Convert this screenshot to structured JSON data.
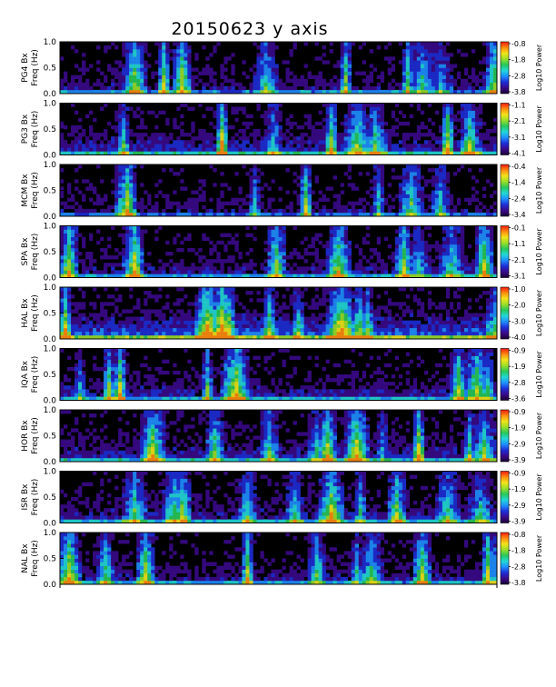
{
  "title": "20150623 y axis",
  "colors": {
    "background": "#000000",
    "colormap": [
      "#1a0033",
      "#3a0a8a",
      "#1e2dd6",
      "#1f8fff",
      "#22d8d8",
      "#27c85a",
      "#9adf2a",
      "#f2e51a",
      "#ff8c10",
      "#ff1a10"
    ]
  },
  "chart_data": [
    {
      "type": "heatmap",
      "station": "PG4",
      "component": "Bx",
      "ylabel": "PG4 Bx\nFreq (Hz)",
      "ylim": [
        0,
        1.0
      ],
      "ytick_labels": [
        "0.0",
        "0.5",
        "1.0"
      ],
      "colorbar_label": "Log10 Power",
      "colorbar_ticks": [
        "-0.8",
        "-1.8",
        "-2.8",
        "-3.8"
      ],
      "intensity": 0.35
    },
    {
      "type": "heatmap",
      "station": "PG3",
      "component": "Bx",
      "ylabel": "PG3 Bx\nFreq (Hz)",
      "ylim": [
        0,
        1.0
      ],
      "ytick_labels": [
        "0.0",
        "0.5",
        "1.0"
      ],
      "colorbar_label": "Log10 Power",
      "colorbar_ticks": [
        "-1.1",
        "-2.1",
        "-3.1",
        "-4.1"
      ],
      "intensity": 0.55
    },
    {
      "type": "heatmap",
      "station": "MCM",
      "component": "Bx",
      "ylabel": "MCM Bx\nFreq (Hz)",
      "ylim": [
        0,
        1.0
      ],
      "ytick_labels": [
        "0.0",
        "0.5",
        "1.0"
      ],
      "colorbar_label": "Log10 Power",
      "colorbar_ticks": [
        "-0.4",
        "-1.4",
        "-2.4",
        "-3.4"
      ],
      "intensity": 0.3
    },
    {
      "type": "heatmap",
      "station": "SPA",
      "component": "Bx",
      "ylabel": "SPA Bx\nFreq (Hz)",
      "ylim": [
        0,
        1.0
      ],
      "ytick_labels": [
        "0.0",
        "0.5",
        "1.0"
      ],
      "colorbar_label": "Log10 Power",
      "colorbar_ticks": [
        "-0.1",
        "-1.1",
        "-2.1",
        "-3.1"
      ],
      "intensity": 0.4
    },
    {
      "type": "heatmap",
      "station": "HAL",
      "component": "Bx",
      "ylabel": "HAL Bx\nFreq (Hz)",
      "ylim": [
        0,
        1.0
      ],
      "ytick_labels": [
        "0.0",
        "0.5",
        "1.0"
      ],
      "colorbar_label": "Log10 Power",
      "colorbar_ticks": [
        "-1.0",
        "-2.0",
        "-3.0",
        "-4.0"
      ],
      "intensity": 0.85
    },
    {
      "type": "heatmap",
      "station": "IQA",
      "component": "Bx",
      "ylabel": "IQA Bx\nFreq (Hz)",
      "ylim": [
        0,
        1.0
      ],
      "ytick_labels": [
        "0.0",
        "0.5",
        "1.0"
      ],
      "colorbar_label": "Log10 Power",
      "colorbar_ticks": [
        "-0.9",
        "-1.9",
        "-2.8",
        "-3.6"
      ],
      "intensity": 0.45
    },
    {
      "type": "heatmap",
      "station": "HOR",
      "component": "Bx",
      "ylabel": "HOR Bx\nFreq (Hz)",
      "ylim": [
        0,
        1.0
      ],
      "ytick_labels": [
        "0.0",
        "0.5",
        "1.0"
      ],
      "colorbar_label": "Log10 Power",
      "colorbar_ticks": [
        "-0.9",
        "-1.9",
        "-2.9",
        "-3.9"
      ],
      "intensity": 0.5
    },
    {
      "type": "heatmap",
      "station": "ISR",
      "component": "Bx",
      "ylabel": "ISR Bx\nFreq (Hz)",
      "ylim": [
        0,
        1.0
      ],
      "ytick_labels": [
        "0.0",
        "0.5",
        "1.0"
      ],
      "colorbar_label": "Log10 Power",
      "colorbar_ticks": [
        "-0.9",
        "-1.9",
        "-2.9",
        "-3.9"
      ],
      "intensity": 0.45
    },
    {
      "type": "heatmap",
      "station": "NAL",
      "component": "Bx",
      "ylabel": "NAL Bx\nFreq (Hz)",
      "ylim": [
        0,
        1.0
      ],
      "ytick_labels": [
        "0.0",
        "0.5",
        "1.0"
      ],
      "colorbar_label": "Log10 Power",
      "colorbar_ticks": [
        "-0.8",
        "-1.8",
        "-2.8",
        "-3.8"
      ],
      "intensity": 0.4
    }
  ]
}
